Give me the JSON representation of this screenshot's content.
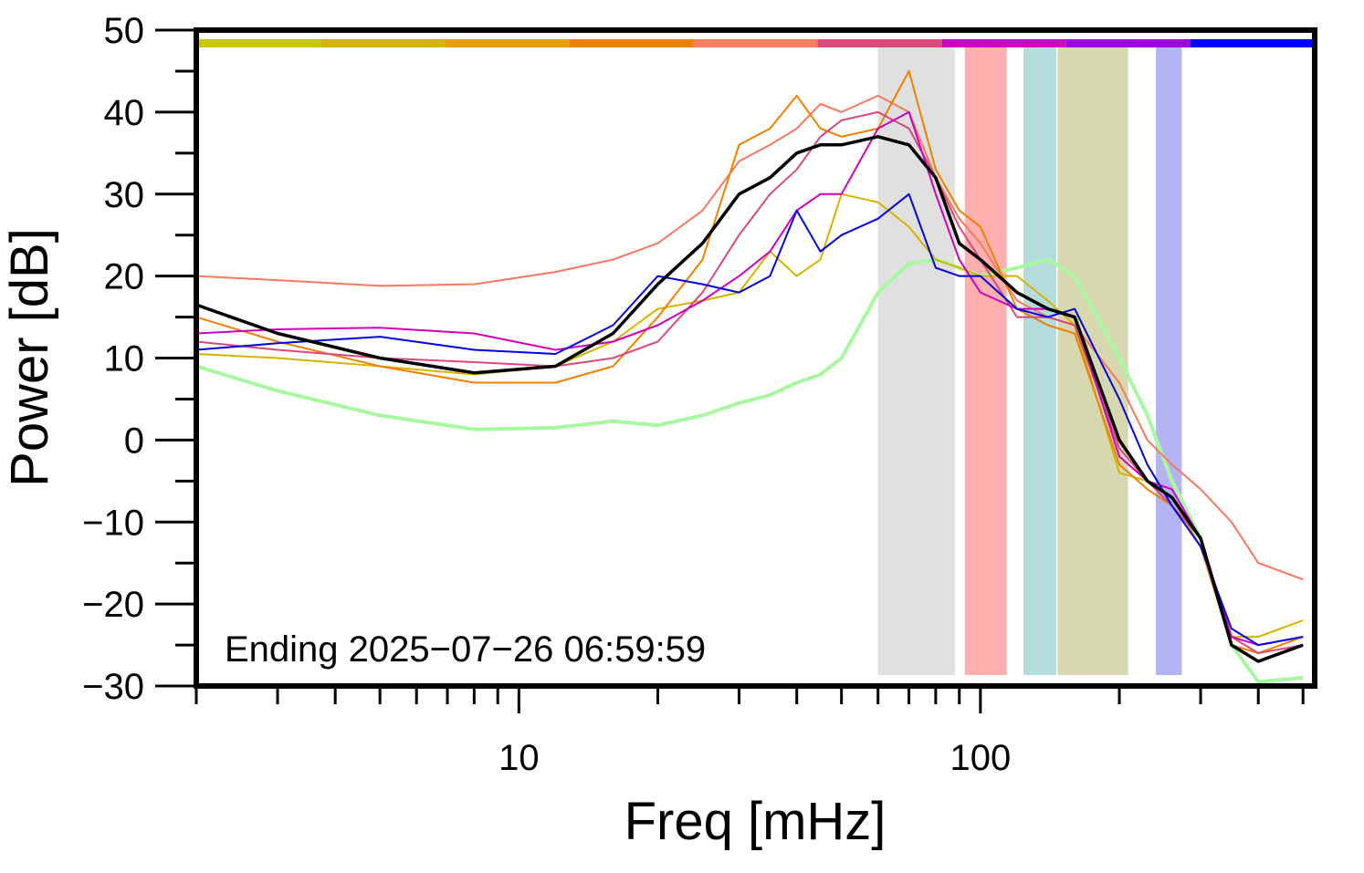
{
  "chart_data": {
    "type": "line",
    "xlabel": "Freq [mHz]",
    "ylabel": "Power [dB]",
    "annotation": "Ending 2025−07−26 06:59:59",
    "log_x": true,
    "xlim": [
      2,
      530
    ],
    "ylim": [
      -30,
      50
    ],
    "xticks": [
      10,
      100
    ],
    "xminorticks": [
      2,
      3,
      4,
      5,
      6,
      7,
      8,
      9,
      20,
      30,
      40,
      50,
      60,
      70,
      80,
      90,
      200,
      300,
      400,
      500
    ],
    "yticks": [
      {
        "value": -30,
        "label": "−30"
      },
      {
        "value": -20,
        "label": "−20"
      },
      {
        "value": -10,
        "label": "−10"
      },
      0,
      10,
      20,
      30,
      40,
      50
    ],
    "yminorticks": [
      -25,
      -15,
      -5,
      5,
      15,
      25,
      35,
      45
    ],
    "x": [
      2,
      3,
      5,
      8,
      12,
      16,
      20,
      25,
      30,
      35,
      40,
      45,
      50,
      60,
      70,
      80,
      90,
      100,
      120,
      140,
      160,
      200,
      230,
      260,
      300,
      350,
      400,
      500
    ],
    "bands": [
      {
        "range": [
          60,
          88
        ],
        "color": "#e0e0e0"
      },
      {
        "range": [
          92.5,
          114
        ],
        "color": "#ffb0ae"
      },
      {
        "range": [
          124,
          146
        ],
        "color": "#b4dcdc"
      },
      {
        "range": [
          147,
          209
        ],
        "color": "#d8d8b0"
      },
      {
        "range": [
          240,
          273
        ],
        "color": "#b4b4f4"
      }
    ],
    "strip_colors": [
      "#c8c800",
      "#d4b400",
      "#e8a000",
      "#f08000",
      "#f88060",
      "#d84a7a",
      "#d000c0",
      "#a000e0",
      "#0000ff"
    ],
    "series": [
      {
        "color": "#a8f8a0",
        "width": 4,
        "values": [
          9,
          6,
          3,
          1.3,
          1.5,
          2.3,
          1.8,
          3,
          4.5,
          5.5,
          7,
          8,
          10,
          18,
          21.5,
          22,
          21,
          20,
          21,
          22,
          20,
          10,
          3,
          -5,
          -12,
          -25,
          -29.5,
          -29
        ]
      },
      {
        "color": "#f87860",
        "width": 2,
        "values": [
          20,
          19.5,
          18.8,
          19,
          20.5,
          22,
          24,
          28,
          34,
          36,
          38,
          41,
          40,
          42,
          40,
          32,
          27,
          24,
          17,
          15,
          14,
          7,
          0,
          -3,
          -6,
          -10,
          -15,
          -17
        ]
      },
      {
        "color": "#d4b400",
        "width": 2,
        "values": [
          10.5,
          10,
          9,
          8,
          9,
          12,
          16,
          17,
          18,
          23,
          20,
          22,
          30,
          29,
          26,
          22,
          21,
          20,
          20,
          17,
          14,
          -4,
          -5,
          -7,
          -13,
          -24,
          -24,
          -22
        ]
      },
      {
        "color": "#f08000",
        "width": 2,
        "values": [
          15,
          12,
          9,
          7,
          7,
          9,
          15,
          22,
          36,
          38,
          42,
          38,
          37,
          38,
          45,
          33,
          28,
          26,
          16,
          14,
          13,
          -3,
          -6,
          -8,
          -13,
          -25,
          -26,
          -24
        ]
      },
      {
        "color": "#d84a7a",
        "width": 2,
        "values": [
          12,
          11,
          10,
          9.5,
          9,
          10,
          12,
          18,
          25,
          30,
          33,
          37,
          39,
          40,
          38,
          32,
          26,
          22,
          15,
          15,
          14,
          -1,
          -5,
          -8,
          -12,
          -24,
          -26,
          -25
        ]
      },
      {
        "color": "#d000c0",
        "width": 2,
        "values": [
          13,
          13.5,
          13.7,
          13,
          11,
          12,
          14,
          17,
          20,
          23,
          28,
          30,
          30,
          38,
          40,
          30,
          22,
          18,
          16,
          16,
          15,
          -2,
          -5,
          -6,
          -12,
          -24,
          -25,
          -24
        ]
      },
      {
        "color": "#0000e0",
        "width": 2,
        "values": [
          11,
          11.8,
          12.6,
          11,
          10.5,
          14,
          20,
          19,
          18,
          20,
          28,
          23,
          25,
          27,
          30,
          21,
          20,
          20,
          16,
          15,
          16,
          5,
          -3,
          -8,
          -13,
          -23,
          -25,
          -24
        ]
      },
      {
        "color": "#000000",
        "width": 3.5,
        "values": [
          16.5,
          13,
          10,
          8.2,
          9,
          13,
          19,
          24,
          30,
          32,
          35,
          36,
          36,
          37,
          36,
          32,
          24,
          22,
          18,
          16,
          15,
          0,
          -5,
          -7,
          -12,
          -25,
          -27,
          -25
        ]
      }
    ]
  }
}
